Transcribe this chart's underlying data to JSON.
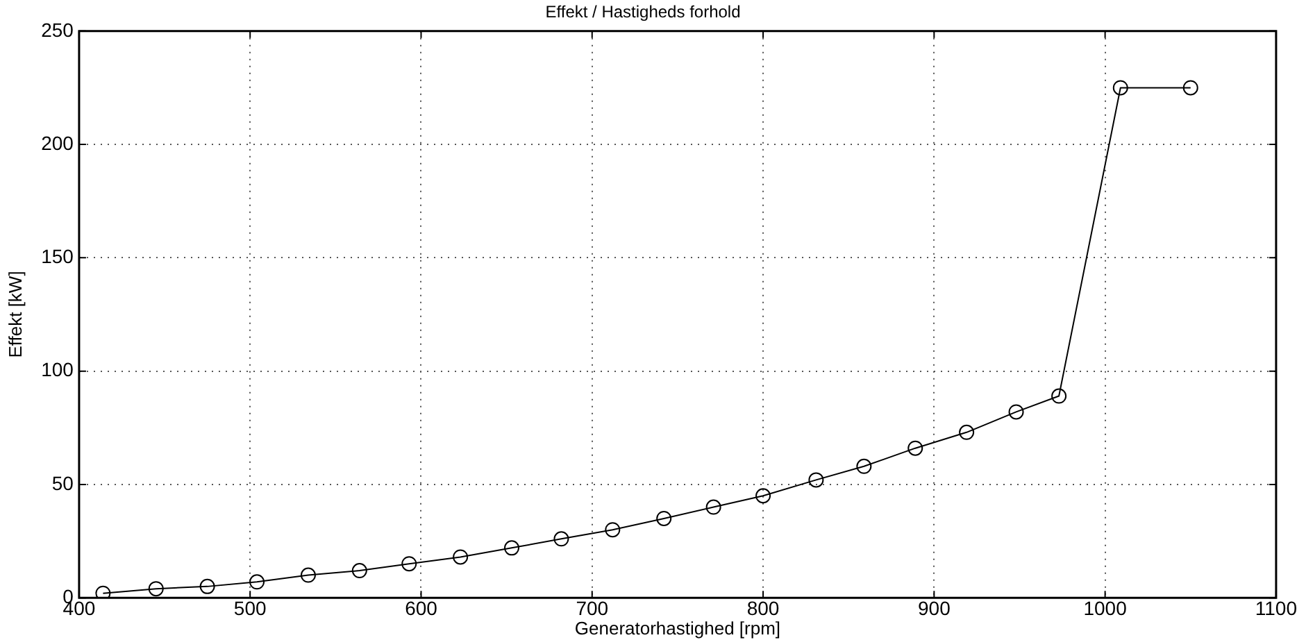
{
  "chart_data": {
    "type": "line",
    "title": "Effekt / Hastigheds forhold",
    "xlabel": "Generatorhastighed [rpm]",
    "ylabel": "Effekt [kW]",
    "x": [
      414,
      445,
      475,
      504,
      534,
      564,
      593,
      623,
      653,
      682,
      712,
      742,
      771,
      800,
      831,
      859,
      889,
      919,
      948,
      973,
      1009,
      1050
    ],
    "series": [
      {
        "color": "#000000",
        "values": [
          2,
          4,
          5,
          7,
          10,
          12,
          15,
          18,
          22,
          26,
          30,
          35,
          40,
          45,
          52,
          58,
          66,
          73,
          82,
          89,
          225,
          225
        ]
      }
    ],
    "xlim": [
      400,
      1100
    ],
    "xticks": [
      400,
      500,
      600,
      700,
      800,
      900,
      1000,
      1100
    ],
    "ylim": [
      0,
      250
    ],
    "yticks": [
      0,
      50,
      100,
      150,
      200,
      250
    ],
    "grid": true,
    "legend": false,
    "marker": "circle",
    "line_style": "solid"
  }
}
